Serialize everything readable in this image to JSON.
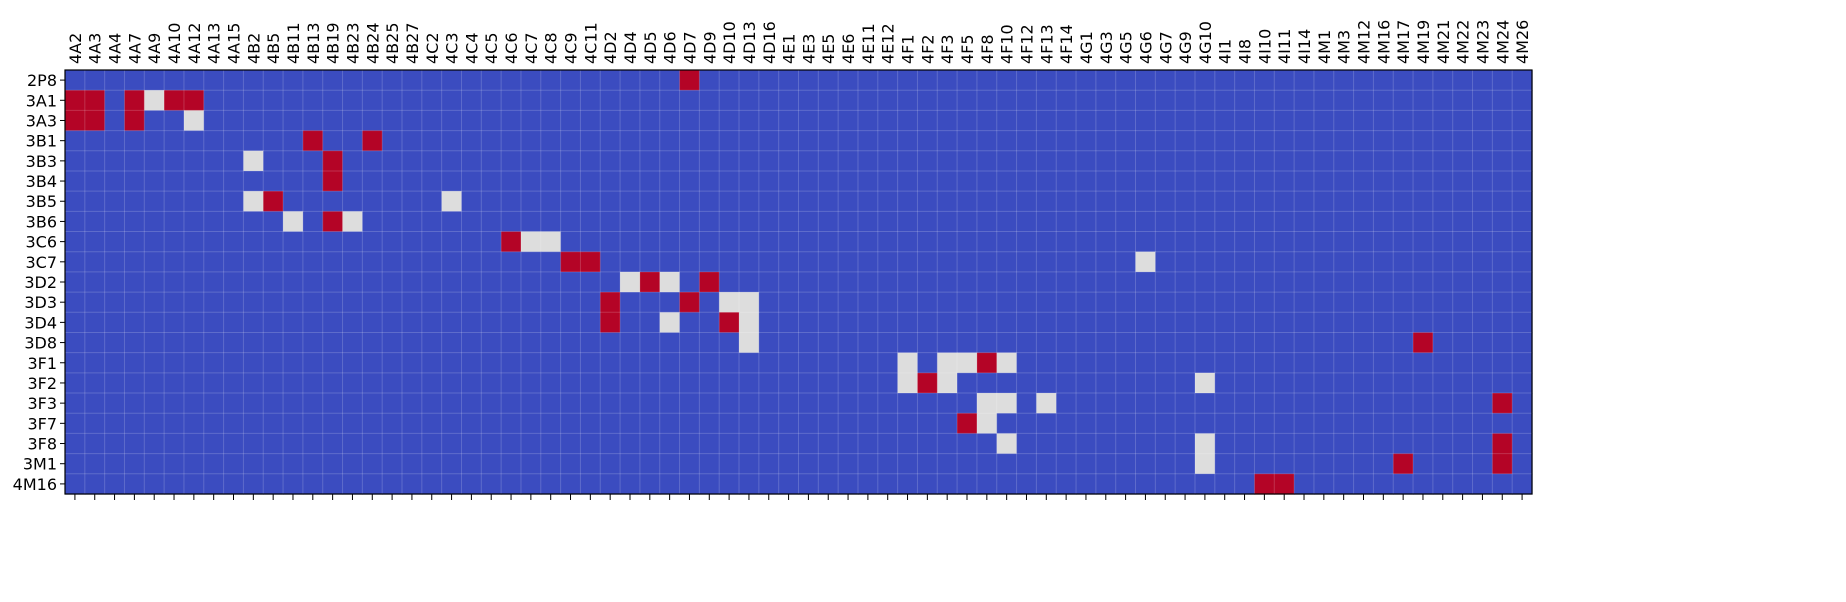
{
  "chart_data": {
    "type": "heatmap",
    "title": "",
    "xlabel": "",
    "ylabel": "",
    "x_categories": [
      "4A2",
      "4A3",
      "4A4",
      "4A7",
      "4A9",
      "4A10",
      "4A12",
      "4A13",
      "4A15",
      "4B2",
      "4B5",
      "4B11",
      "4B13",
      "4B19",
      "4B23",
      "4B24",
      "4B25",
      "4B27",
      "4C2",
      "4C3",
      "4C4",
      "4C5",
      "4C6",
      "4C7",
      "4C8",
      "4C9",
      "4C11",
      "4D2",
      "4D4",
      "4D5",
      "4D6",
      "4D7",
      "4D9",
      "4D10",
      "4D13",
      "4D16",
      "4E1",
      "4E3",
      "4E5",
      "4E6",
      "4E11",
      "4E12",
      "4F1",
      "4F2",
      "4F3",
      "4F5",
      "4F8",
      "4F10",
      "4F12",
      "4F13",
      "4F14",
      "4G1",
      "4G3",
      "4G5",
      "4G6",
      "4G7",
      "4G9",
      "4G10",
      "4I1",
      "4I8",
      "4I10",
      "4I11",
      "4I14",
      "4M1",
      "4M3",
      "4M12",
      "4M16",
      "4M17",
      "4M19",
      "4M21",
      "4M22",
      "4M23",
      "4M24",
      "4M26"
    ],
    "y_categories": [
      "2P8",
      "3A1",
      "3A3",
      "3B1",
      "3B3",
      "3B4",
      "3B5",
      "3B6",
      "3C6",
      "3C7",
      "3D2",
      "3D3",
      "3D4",
      "3D8",
      "3F1",
      "3F2",
      "3F3",
      "3F7",
      "3F8",
      "3M1",
      "4M16"
    ],
    "values": [
      [
        0,
        0,
        0,
        0,
        0,
        0,
        0,
        0,
        0,
        0,
        0,
        0,
        0,
        0,
        0,
        0,
        0,
        0,
        0,
        0,
        0,
        0,
        0,
        0,
        0,
        0,
        0,
        0,
        0,
        0,
        0,
        1,
        0,
        0,
        0,
        0,
        0,
        0,
        0,
        0,
        0,
        0,
        0,
        0,
        0,
        0,
        0,
        0,
        0,
        0,
        0,
        0,
        0,
        0,
        0,
        0,
        0,
        0,
        0,
        0,
        0,
        0,
        0,
        0,
        0,
        0,
        0,
        0,
        0,
        0,
        0,
        0,
        0,
        0
      ],
      [
        1,
        1,
        0,
        1,
        0.5,
        1,
        1,
        0,
        0,
        0,
        0,
        0,
        0,
        0,
        0,
        0,
        0,
        0,
        0,
        0,
        0,
        0,
        0,
        0,
        0,
        0,
        0,
        0,
        0,
        0,
        0,
        0,
        0,
        0,
        0,
        0,
        0,
        0,
        0,
        0,
        0,
        0,
        0,
        0,
        0,
        0,
        0,
        0,
        0,
        0,
        0,
        0,
        0,
        0,
        0,
        0,
        0,
        0,
        0,
        0,
        0,
        0,
        0,
        0,
        0,
        0,
        0,
        0,
        0,
        0,
        0,
        0,
        0,
        0
      ],
      [
        1,
        1,
        0,
        1,
        0,
        0,
        0.5,
        0,
        0,
        0,
        0,
        0,
        0,
        0,
        0,
        0,
        0,
        0,
        0,
        0,
        0,
        0,
        0,
        0,
        0,
        0,
        0,
        0,
        0,
        0,
        0,
        0,
        0,
        0,
        0,
        0,
        0,
        0,
        0,
        0,
        0,
        0,
        0,
        0,
        0,
        0,
        0,
        0,
        0,
        0,
        0,
        0,
        0,
        0,
        0,
        0,
        0,
        0,
        0,
        0,
        0,
        0,
        0,
        0,
        0,
        0,
        0,
        0,
        0,
        0,
        0,
        0,
        0,
        0
      ],
      [
        0,
        0,
        0,
        0,
        0,
        0,
        0,
        0,
        0,
        0,
        0,
        0,
        1,
        0,
        0,
        1,
        0,
        0,
        0,
        0,
        0,
        0,
        0,
        0,
        0,
        0,
        0,
        0,
        0,
        0,
        0,
        0,
        0,
        0,
        0,
        0,
        0,
        0,
        0,
        0,
        0,
        0,
        0,
        0,
        0,
        0,
        0,
        0,
        0,
        0,
        0,
        0,
        0,
        0,
        0,
        0,
        0,
        0,
        0,
        0,
        0,
        0,
        0,
        0,
        0,
        0,
        0,
        0,
        0,
        0,
        0,
        0,
        0,
        0
      ],
      [
        0,
        0,
        0,
        0,
        0,
        0,
        0,
        0,
        0,
        0.5,
        0,
        0,
        0,
        1,
        0,
        0,
        0,
        0,
        0,
        0,
        0,
        0,
        0,
        0,
        0,
        0,
        0,
        0,
        0,
        0,
        0,
        0,
        0,
        0,
        0,
        0,
        0,
        0,
        0,
        0,
        0,
        0,
        0,
        0,
        0,
        0,
        0,
        0,
        0,
        0,
        0,
        0,
        0,
        0,
        0,
        0,
        0,
        0,
        0,
        0,
        0,
        0,
        0,
        0,
        0,
        0,
        0,
        0,
        0,
        0,
        0,
        0,
        0,
        0
      ],
      [
        0,
        0,
        0,
        0,
        0,
        0,
        0,
        0,
        0,
        0,
        0,
        0,
        0,
        1,
        0,
        0,
        0,
        0,
        0,
        0,
        0,
        0,
        0,
        0,
        0,
        0,
        0,
        0,
        0,
        0,
        0,
        0,
        0,
        0,
        0,
        0,
        0,
        0,
        0,
        0,
        0,
        0,
        0,
        0,
        0,
        0,
        0,
        0,
        0,
        0,
        0,
        0,
        0,
        0,
        0,
        0,
        0,
        0,
        0,
        0,
        0,
        0,
        0,
        0,
        0,
        0,
        0,
        0,
        0,
        0,
        0,
        0,
        0,
        0
      ],
      [
        0,
        0,
        0,
        0,
        0,
        0,
        0,
        0,
        0,
        0.5,
        1,
        0,
        0,
        0,
        0,
        0,
        0,
        0,
        0,
        0.5,
        0,
        0,
        0,
        0,
        0,
        0,
        0,
        0,
        0,
        0,
        0,
        0,
        0,
        0,
        0,
        0,
        0,
        0,
        0,
        0,
        0,
        0,
        0,
        0,
        0,
        0,
        0,
        0,
        0,
        0,
        0,
        0,
        0,
        0,
        0,
        0,
        0,
        0,
        0,
        0,
        0,
        0,
        0,
        0,
        0,
        0,
        0,
        0,
        0,
        0,
        0,
        0,
        0,
        0
      ],
      [
        0,
        0,
        0,
        0,
        0,
        0,
        0,
        0,
        0,
        0,
        0,
        0.5,
        0,
        1,
        0.5,
        0,
        0,
        0,
        0,
        0,
        0,
        0,
        0,
        0,
        0,
        0,
        0,
        0,
        0,
        0,
        0,
        0,
        0,
        0,
        0,
        0,
        0,
        0,
        0,
        0,
        0,
        0,
        0,
        0,
        0,
        0,
        0,
        0,
        0,
        0,
        0,
        0,
        0,
        0,
        0,
        0,
        0,
        0,
        0,
        0,
        0,
        0,
        0,
        0,
        0,
        0,
        0,
        0,
        0,
        0,
        0,
        0,
        0,
        0
      ],
      [
        0,
        0,
        0,
        0,
        0,
        0,
        0,
        0,
        0,
        0,
        0,
        0,
        0,
        0,
        0,
        0,
        0,
        0,
        0,
        0,
        0,
        0,
        1,
        0.5,
        0.5,
        0,
        0,
        0,
        0,
        0,
        0,
        0,
        0,
        0,
        0,
        0,
        0,
        0,
        0,
        0,
        0,
        0,
        0,
        0,
        0,
        0,
        0,
        0,
        0,
        0,
        0,
        0,
        0,
        0,
        0,
        0,
        0,
        0,
        0,
        0,
        0,
        0,
        0,
        0,
        0,
        0,
        0,
        0,
        0,
        0,
        0,
        0
      ],
      [
        0,
        0,
        0,
        0,
        0,
        0,
        0,
        0,
        0,
        0,
        0,
        0,
        0,
        0,
        0,
        0,
        0,
        0,
        0,
        0,
        0,
        0,
        0,
        0,
        0,
        1,
        1,
        0,
        0,
        0,
        0,
        0,
        0,
        0,
        0,
        0,
        0,
        0,
        0,
        0,
        0,
        0,
        0,
        0,
        0,
        0,
        0,
        0,
        0,
        0,
        0,
        0,
        0,
        0,
        0.5,
        0,
        0,
        0,
        0,
        0,
        0,
        0,
        0,
        0,
        0,
        0,
        0,
        0,
        0,
        0,
        0,
        0,
        0,
        0
      ],
      [
        0,
        0,
        0,
        0,
        0,
        0,
        0,
        0,
        0,
        0,
        0,
        0,
        0,
        0,
        0,
        0,
        0,
        0,
        0,
        0,
        0,
        0,
        0,
        0,
        0,
        0,
        0,
        0,
        0.5,
        1,
        0.5,
        0,
        1,
        0,
        0,
        0,
        0,
        0,
        0,
        0,
        0,
        0,
        0,
        0,
        0,
        0,
        0,
        0,
        0,
        0,
        0,
        0,
        0,
        0,
        0,
        0,
        0,
        0,
        0,
        0,
        0,
        0,
        0,
        0,
        0,
        0,
        0,
        0,
        0,
        0,
        0,
        0
      ],
      [
        0,
        0,
        0,
        0,
        0,
        0,
        0,
        0,
        0,
        0,
        0,
        0,
        0,
        0,
        0,
        0,
        0,
        0,
        0,
        0,
        0,
        0,
        0,
        0,
        0,
        0,
        0,
        1,
        0,
        0,
        0,
        1,
        0,
        0.5,
        0.5,
        0,
        0,
        0,
        0,
        0,
        0,
        0,
        0,
        0,
        0,
        0,
        0,
        0,
        0,
        0,
        0,
        0,
        0,
        0,
        0,
        0,
        0,
        0,
        0,
        0,
        0,
        0,
        0,
        0,
        0,
        0,
        0,
        0,
        0,
        0,
        0,
        0,
        0,
        0
      ],
      [
        0,
        0,
        0,
        0,
        0,
        0,
        0,
        0,
        0,
        0,
        0,
        0,
        0,
        0,
        0,
        0,
        0,
        0,
        0,
        0,
        0,
        0,
        0,
        0,
        0,
        0,
        0,
        1,
        0,
        0,
        0.5,
        0,
        0,
        1,
        0.5,
        0,
        0,
        0,
        0,
        0,
        0,
        0,
        0,
        0,
        0,
        0,
        0,
        0,
        0,
        0,
        0,
        0,
        0,
        0,
        0,
        0,
        0,
        0,
        0,
        0,
        0,
        0,
        0,
        0,
        0,
        0,
        0,
        0,
        0,
        0,
        0,
        0
      ],
      [
        0,
        0,
        0,
        0,
        0,
        0,
        0,
        0,
        0,
        0,
        0,
        0,
        0,
        0,
        0,
        0,
        0,
        0,
        0,
        0,
        0,
        0,
        0,
        0,
        0,
        0,
        0,
        0,
        0,
        0,
        0,
        0,
        0,
        0,
        0.5,
        0,
        0,
        0,
        0,
        0,
        0,
        0,
        0,
        0,
        0,
        0,
        0,
        0,
        0,
        0,
        0,
        0,
        0,
        0,
        0,
        0,
        0,
        0,
        0,
        0,
        0,
        0,
        0,
        0,
        0,
        0,
        0,
        0,
        1,
        0,
        0,
        0,
        0,
        0
      ],
      [
        0,
        0,
        0,
        0,
        0,
        0,
        0,
        0,
        0,
        0,
        0,
        0,
        0,
        0,
        0,
        0,
        0,
        0,
        0,
        0,
        0,
        0,
        0,
        0,
        0,
        0,
        0,
        0,
        0,
        0,
        0,
        0,
        0,
        0,
        0,
        0,
        0,
        0,
        0,
        0,
        0,
        0,
        0.5,
        0,
        0.5,
        0.5,
        1,
        0.5,
        0,
        0,
        0,
        0,
        0,
        0,
        0,
        0,
        0,
        0,
        0,
        0,
        0,
        0,
        0,
        0,
        0,
        0,
        0,
        0,
        0,
        0,
        0,
        0,
        0,
        0
      ],
      [
        0,
        0,
        0,
        0,
        0,
        0,
        0,
        0,
        0,
        0,
        0,
        0,
        0,
        0,
        0,
        0,
        0,
        0,
        0,
        0,
        0,
        0,
        0,
        0,
        0,
        0,
        0,
        0,
        0,
        0,
        0,
        0,
        0,
        0,
        0,
        0,
        0,
        0,
        0,
        0,
        0,
        0,
        0.5,
        1,
        0.5,
        0,
        0,
        0,
        0,
        0,
        0,
        0,
        0,
        0,
        0,
        0,
        0,
        0.5,
        0,
        0,
        0,
        0,
        0,
        0,
        0,
        0,
        0,
        0,
        0,
        0,
        0,
        0,
        0,
        0
      ],
      [
        0,
        0,
        0,
        0,
        0,
        0,
        0,
        0,
        0,
        0,
        0,
        0,
        0,
        0,
        0,
        0,
        0,
        0,
        0,
        0,
        0,
        0,
        0,
        0,
        0,
        0,
        0,
        0,
        0,
        0,
        0,
        0,
        0,
        0,
        0,
        0,
        0,
        0,
        0,
        0,
        0,
        0,
        0,
        0,
        0,
        0,
        0.5,
        0.5,
        0,
        0.5,
        0,
        0,
        0,
        0,
        0,
        0,
        0,
        0,
        0,
        0,
        0,
        0,
        0,
        0,
        0,
        0,
        0,
        0,
        0,
        0,
        0,
        0,
        1,
        0
      ],
      [
        0,
        0,
        0,
        0,
        0,
        0,
        0,
        0,
        0,
        0,
        0,
        0,
        0,
        0,
        0,
        0,
        0,
        0,
        0,
        0,
        0,
        0,
        0,
        0,
        0,
        0,
        0,
        0,
        0,
        0,
        0,
        0,
        0,
        0,
        0,
        0,
        0,
        0,
        0,
        0,
        0,
        0,
        0,
        0,
        0,
        1,
        0.5,
        0,
        0,
        0,
        0,
        0,
        0,
        0,
        0,
        0,
        0,
        0,
        0,
        0,
        0,
        0,
        0,
        0,
        0,
        0,
        0,
        0,
        0,
        0,
        0,
        0,
        0,
        0
      ],
      [
        0,
        0,
        0,
        0,
        0,
        0,
        0,
        0,
        0,
        0,
        0,
        0,
        0,
        0,
        0,
        0,
        0,
        0,
        0,
        0,
        0,
        0,
        0,
        0,
        0,
        0,
        0,
        0,
        0,
        0,
        0,
        0,
        0,
        0,
        0,
        0,
        0,
        0,
        0,
        0,
        0,
        0,
        0,
        0,
        0,
        0,
        0,
        0.5,
        0,
        0,
        0,
        0,
        0,
        0,
        0,
        0,
        0,
        0.5,
        0,
        0,
        0,
        0,
        0,
        0,
        0,
        0,
        0,
        0,
        0,
        0,
        0,
        0,
        1,
        0
      ],
      [
        0,
        0,
        0,
        0,
        0,
        0,
        0,
        0,
        0,
        0,
        0,
        0,
        0,
        0,
        0,
        0,
        0,
        0,
        0,
        0,
        0,
        0,
        0,
        0,
        0,
        0,
        0,
        0,
        0,
        0,
        0,
        0,
        0,
        0,
        0,
        0,
        0,
        0,
        0,
        0,
        0,
        0,
        0,
        0,
        0,
        0,
        0,
        0,
        0,
        0,
        0,
        0,
        0,
        0,
        0,
        0,
        0,
        0.5,
        0,
        0,
        0,
        0,
        0,
        0,
        0,
        0,
        0,
        1,
        0,
        0,
        0,
        0,
        1,
        0
      ],
      [
        0,
        0,
        0,
        0,
        0,
        0,
        0,
        0,
        0,
        0,
        0,
        0,
        0,
        0,
        0,
        0,
        0,
        0,
        0,
        0,
        0,
        0,
        0,
        0,
        0,
        0,
        0,
        0,
        0,
        0,
        0,
        0,
        0,
        0,
        0,
        0,
        0,
        0,
        0,
        0,
        0,
        0,
        0,
        0,
        0,
        0,
        0,
        0,
        0,
        0,
        0,
        0,
        0,
        0,
        0,
        0,
        0,
        0,
        0,
        0,
        1,
        1,
        0,
        0,
        0,
        0,
        0,
        0,
        0,
        0,
        0,
        0,
        0,
        0
      ]
    ],
    "colors": {
      "0": "#3b4cc0",
      "0.5": "#dddddd",
      "1": "#b40426"
    },
    "grid": true,
    "legend": "none"
  }
}
